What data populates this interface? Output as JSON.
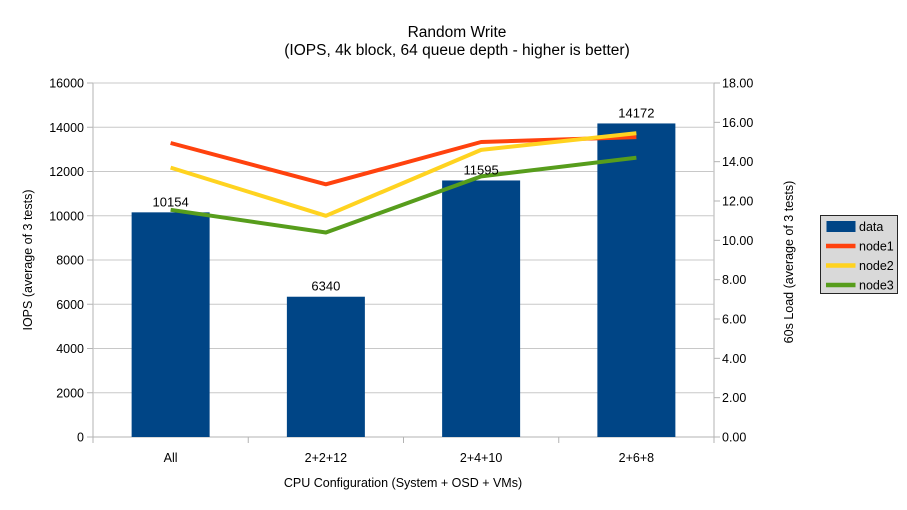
{
  "chart_data": {
    "type": "bar",
    "combo": "bars with overlaid lines, dual y-axes",
    "title": "Random Write",
    "subtitle": "(IOPS, 4k block, 64 queue depth - higher is better)",
    "xlabel": "CPU Configuration (System + OSD + VMs)",
    "categories": [
      "All",
      "2+2+12",
      "2+4+10",
      "2+6+8"
    ],
    "axes": {
      "left": {
        "label": "IOPS (average of 3 tests)",
        "min": 0,
        "max": 16000,
        "step": 2000,
        "tick_labels": [
          "0",
          "2000",
          "4000",
          "6000",
          "8000",
          "10000",
          "12000",
          "14000",
          "16000"
        ]
      },
      "right": {
        "label": "60s Load (average of 3 tests)",
        "min": 0,
        "max": 18,
        "step": 2,
        "tick_labels": [
          "0.00",
          "2.00",
          "4.00",
          "6.00",
          "8.00",
          "10.00",
          "12.00",
          "14.00",
          "16.00",
          "18.00"
        ]
      }
    },
    "bar_series": [
      {
        "name": "data",
        "axis": "left",
        "color": "#004586",
        "values": [
          10154,
          6340,
          11595,
          14172
        ],
        "data_labels": [
          "10154",
          "6340",
          "11595",
          "14172"
        ]
      }
    ],
    "line_series": [
      {
        "name": "node1",
        "axis": "right",
        "color": "#ff420e",
        "values": [
          14.95,
          12.85,
          15.0,
          15.25
        ]
      },
      {
        "name": "node2",
        "axis": "right",
        "color": "#ffd320",
        "values": [
          13.7,
          11.25,
          14.6,
          15.45
        ]
      },
      {
        "name": "node3",
        "axis": "right",
        "color": "#579d1c",
        "values": [
          11.55,
          10.4,
          13.25,
          14.2
        ]
      }
    ],
    "legend": {
      "position": "right",
      "entries": [
        {
          "label": "data",
          "swatch": "bar",
          "color": "#004586"
        },
        {
          "label": "node1",
          "swatch": "line",
          "color": "#ff420e"
        },
        {
          "label": "node2",
          "swatch": "line",
          "color": "#ffd320"
        },
        {
          "label": "node3",
          "swatch": "line",
          "color": "#579d1c"
        }
      ]
    },
    "grid": true,
    "colors": {
      "background": "#ffffff",
      "grid": "#c8c8c8",
      "axis": "#b3b3b3",
      "text": "#000000",
      "legend_bg": "#d9d9d9",
      "legend_border": "#262626"
    }
  }
}
